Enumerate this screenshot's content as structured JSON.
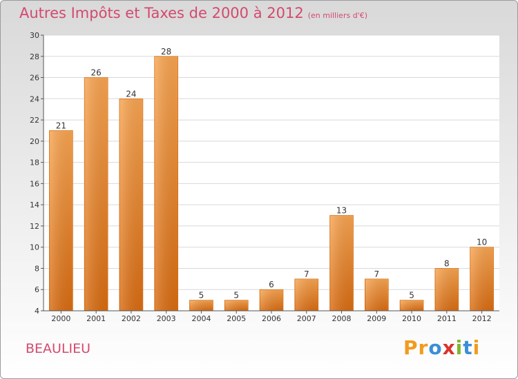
{
  "chart_data": {
    "type": "bar",
    "title": "Autres Impôts et Taxes de 2000 à 2012",
    "subtitle": "(en milliers d'€)",
    "categories": [
      "2000",
      "2001",
      "2002",
      "2003",
      "2004",
      "2005",
      "2006",
      "2007",
      "2008",
      "2009",
      "2010",
      "2011",
      "2012"
    ],
    "values": [
      21,
      26,
      24,
      28,
      5,
      5,
      6,
      7,
      13,
      7,
      5,
      8,
      10
    ],
    "ylim": [
      4,
      30
    ],
    "yticks": [
      4,
      6,
      8,
      10,
      12,
      14,
      16,
      18,
      20,
      22,
      24,
      26,
      28,
      30
    ],
    "grid": true,
    "bar_color": "#f0963a"
  },
  "location": "BEAULIEU",
  "brand": {
    "letters": [
      "P",
      "r",
      "o",
      "x",
      "i",
      "t",
      "i"
    ],
    "colors": [
      "#f39a1d",
      "#f39a1d",
      "#3a8fd6",
      "#d9342b",
      "#7cb82f",
      "#3a8fd6",
      "#f39a1d"
    ]
  }
}
